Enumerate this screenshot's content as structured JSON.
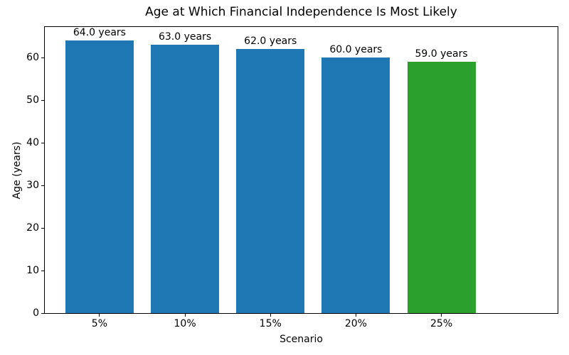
{
  "figure": {
    "background": "#ffffff",
    "text_color": "#000000",
    "axis_color": "#000000"
  },
  "chart_data": {
    "type": "bar",
    "title": "Age at Which Financial Independence Is Most Likely",
    "xlabel": "Scenario",
    "ylabel": "Age (years)",
    "categories": [
      "5%",
      "10%",
      "15%",
      "20%",
      "25%"
    ],
    "values": [
      64.0,
      63.0,
      62.0,
      60.0,
      59.0
    ],
    "bar_labels": [
      "64.0 years",
      "63.0 years",
      "62.0 years",
      "60.0 years",
      "59.0 years"
    ],
    "bar_colors": [
      "#1f77b4",
      "#1f77b4",
      "#1f77b4",
      "#1f77b4",
      "#2ca02c"
    ],
    "ylim": [
      0,
      67.2
    ],
    "yticks": [
      0,
      10,
      20,
      30,
      40,
      50,
      60
    ],
    "grid": false,
    "legend_position": "none",
    "bar_width_fraction": 0.8,
    "x_margin_units": 0.64
  }
}
